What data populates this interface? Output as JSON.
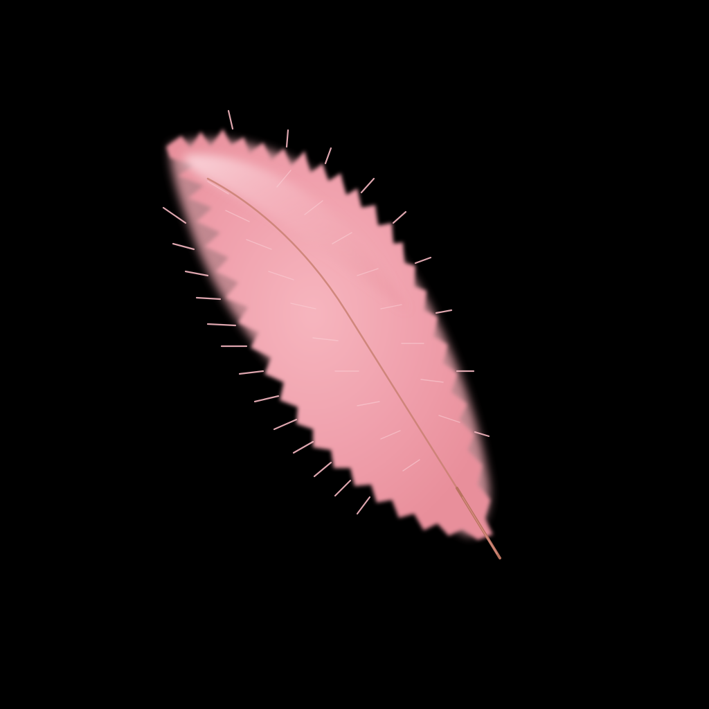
{
  "scene": {
    "subject": "pink feather",
    "background_color": "#000000",
    "colors": {
      "feather_light": "#f7c3cb",
      "feather_mid": "#f0a3ae",
      "feather_deep": "#e3848f",
      "feather_edge": "#fbd7dd",
      "quill": "#b8735f",
      "quill_tip": "#d98f84"
    }
  }
}
